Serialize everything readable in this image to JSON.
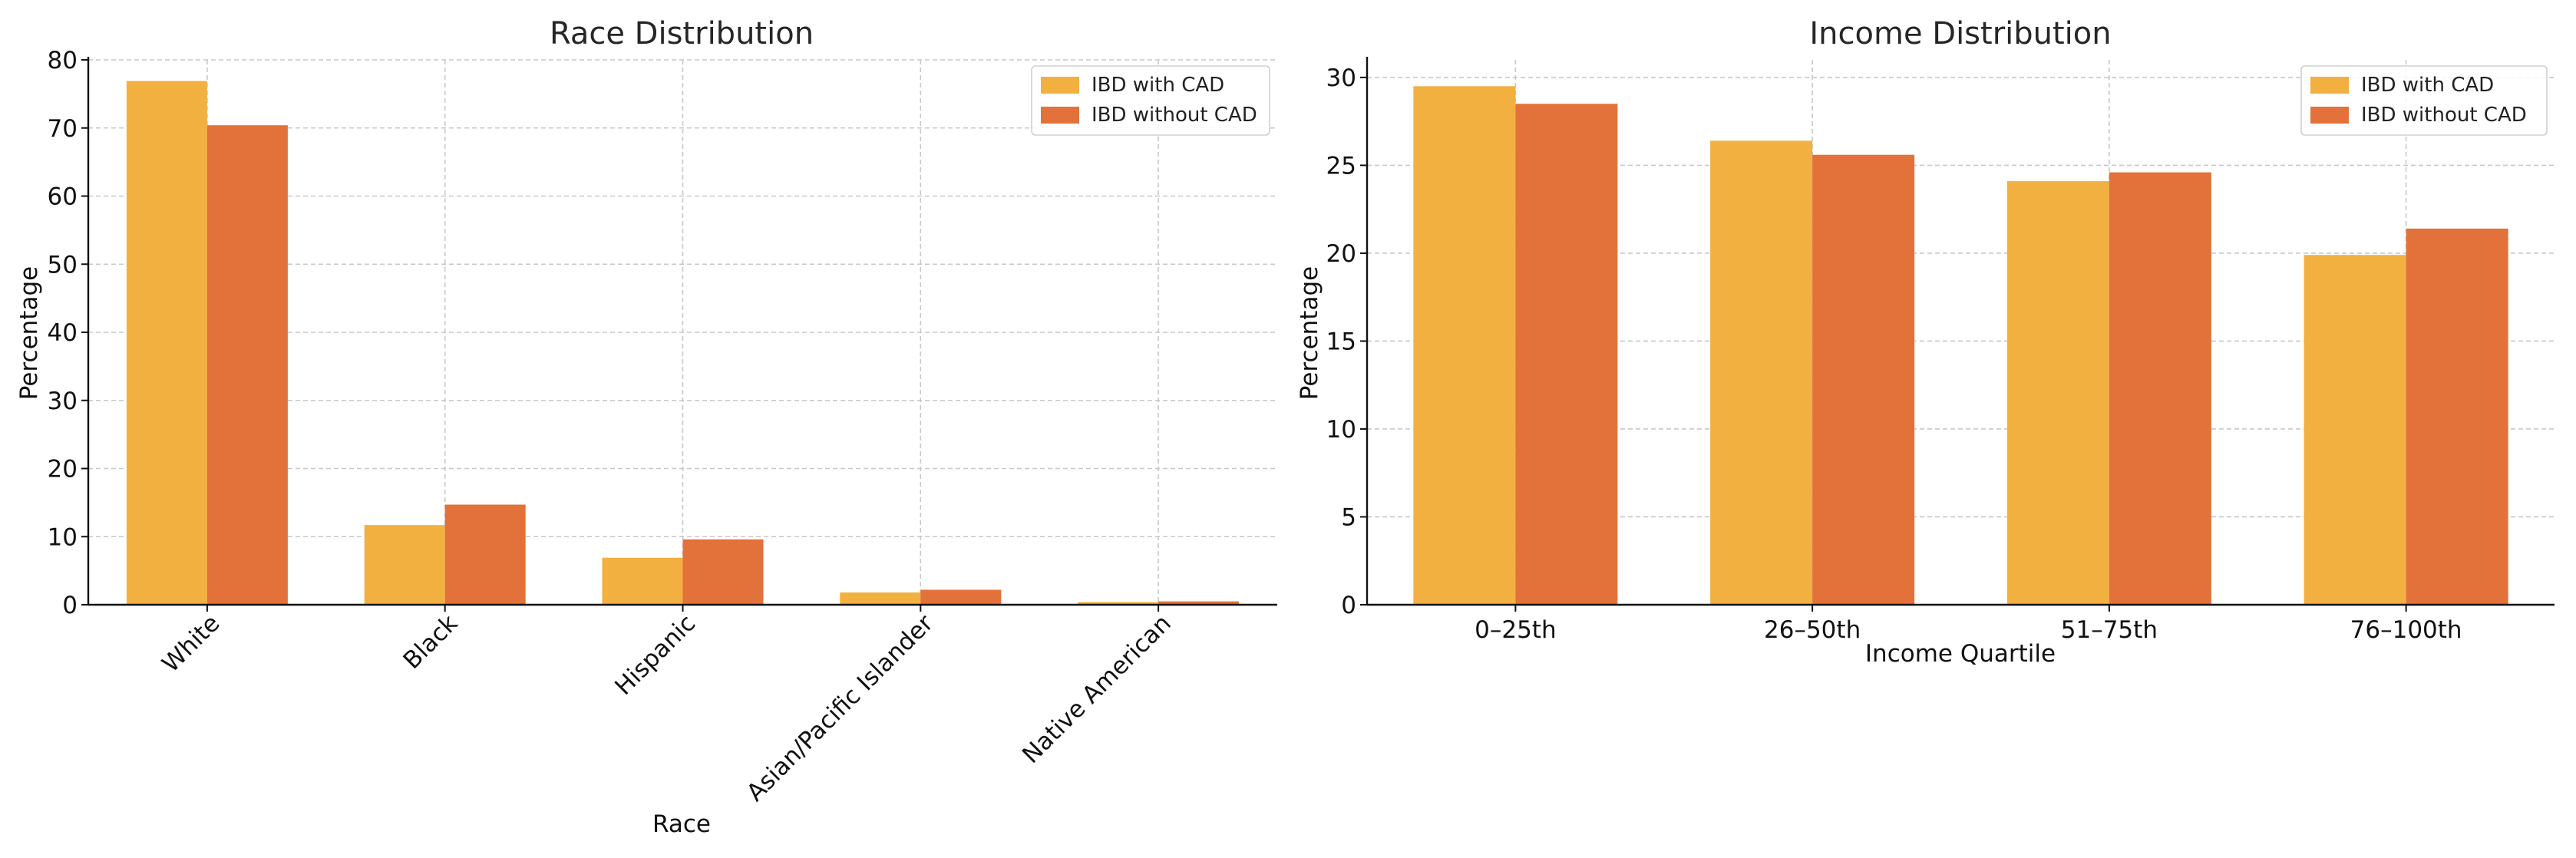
{
  "chart_data": [
    {
      "type": "bar",
      "title": "Race Distribution",
      "xlabel": "Race",
      "ylabel": "Percentage",
      "categories": [
        "White",
        "Black",
        "Hispanic",
        "Asian/Pacific Islander",
        "Native American"
      ],
      "series": [
        {
          "name": "IBD with CAD",
          "values": [
            76.9,
            11.7,
            6.9,
            1.8,
            0.4
          ],
          "color": "#F2B040"
        },
        {
          "name": "IBD without CAD",
          "values": [
            70.4,
            14.7,
            9.6,
            2.2,
            0.5
          ],
          "color": "#E3713A"
        }
      ],
      "ylim": [
        0,
        80
      ],
      "yticks": [
        0,
        10,
        20,
        30,
        40,
        50,
        60,
        70,
        80
      ],
      "grid": true,
      "legend_position": "top-right"
    },
    {
      "type": "bar",
      "title": "Income Distribution",
      "xlabel": "Income Quartile",
      "ylabel": "Percentage",
      "categories": [
        "0–25th",
        "26–50th",
        "51–75th",
        "76–100th"
      ],
      "series": [
        {
          "name": "IBD with CAD",
          "values": [
            29.5,
            26.4,
            24.1,
            19.9
          ],
          "color": "#F2B040"
        },
        {
          "name": "IBD without CAD",
          "values": [
            28.5,
            25.6,
            24.6,
            21.4
          ],
          "color": "#E3713A"
        }
      ],
      "ylim": [
        0,
        31
      ],
      "yticks": [
        0,
        5,
        10,
        15,
        20,
        25,
        30
      ],
      "grid": true,
      "legend_position": "top-right"
    }
  ]
}
